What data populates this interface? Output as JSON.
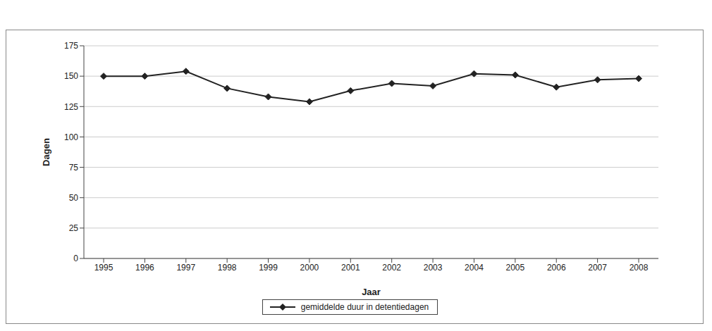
{
  "chart_data": {
    "type": "line",
    "x_label": "Jaar",
    "y_label": "Dagen",
    "categories": [
      "1995",
      "1996",
      "1997",
      "1998",
      "1999",
      "2000",
      "2001",
      "2002",
      "2003",
      "2004",
      "2005",
      "2006",
      "2007",
      "2008"
    ],
    "series": [
      {
        "name": "gemiddelde duur in detentiedagen",
        "color": "#222222",
        "marker": "diamond",
        "values": [
          150,
          150,
          154,
          140,
          133,
          129,
          138,
          144,
          142,
          152,
          151,
          141,
          147,
          148
        ]
      }
    ],
    "ylim": [
      0,
      175
    ],
    "yticks": [
      0,
      25,
      50,
      75,
      100,
      125,
      150,
      175
    ],
    "grid": true,
    "legend": "bottom"
  }
}
